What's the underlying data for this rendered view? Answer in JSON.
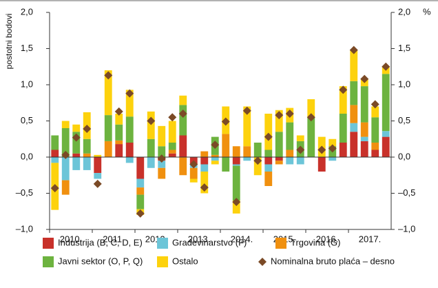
{
  "chart_data": {
    "type": "bar",
    "stacked": true,
    "ylabel": "postotni bodovi",
    "y2label": "%",
    "categories": [
      "2010.",
      null,
      null,
      null,
      "2011.",
      null,
      null,
      null,
      "2012.",
      null,
      null,
      null,
      "2013.",
      null,
      null,
      null,
      "2014.",
      null,
      null,
      null,
      "2015.",
      null,
      null,
      null,
      "2016.",
      null,
      null,
      null,
      "2017.",
      null,
      null,
      null
    ],
    "ylim": [
      -1,
      2
    ],
    "yticks": [
      {
        "value": -1,
        "label": "–1,0"
      },
      {
        "value": -0.5,
        "label": "–0,5"
      },
      {
        "value": 0,
        "label": "0,0"
      },
      {
        "value": 0.5,
        "label": "0,5"
      },
      {
        "value": 1,
        "label": "1,0"
      },
      {
        "value": 1.5,
        "label": "1,5"
      },
      {
        "value": 2,
        "label": "2,0"
      }
    ],
    "y2lim": [
      -1,
      2
    ],
    "y2ticks": [
      {
        "value": -1,
        "label": "–1,0"
      },
      {
        "value": -0.5,
        "label": "–0,5"
      },
      {
        "value": 0,
        "label": "0,0"
      },
      {
        "value": 0.5,
        "label": "0,5"
      },
      {
        "value": 1,
        "label": "1,0"
      },
      {
        "value": 1.5,
        "label": "1,5"
      },
      {
        "value": 2,
        "label": "2,0"
      }
    ],
    "grid": false,
    "series": [
      {
        "name": "Industrija (B, C, D, E)",
        "color": "#c8312a",
        "values": [
          0.1,
          0,
          0.05,
          0,
          -0.22,
          0,
          0.18,
          0.2,
          -0.3,
          0,
          -0.05,
          0.05,
          0.3,
          -0.1,
          -0.1,
          0,
          0,
          -0.1,
          0,
          0,
          -0.1,
          -0.05,
          0,
          0,
          0,
          -0.2,
          0,
          0.2,
          0.35,
          0.22,
          0.1,
          0.28
        ]
      },
      {
        "name": "Građevinarstvo (F)",
        "color": "#6cc5d8",
        "values": [
          -0.08,
          -0.32,
          -0.18,
          -0.18,
          -0.08,
          0,
          0,
          -0.08,
          -0.12,
          -0.15,
          -0.1,
          0,
          0,
          -0.05,
          -0.1,
          -0.05,
          0,
          -0.02,
          -0.05,
          0,
          -0.1,
          0,
          -0.1,
          -0.1,
          0,
          0,
          -0.05,
          0,
          0.12,
          0.06,
          0,
          0.08
        ]
      },
      {
        "name": "Trgovina (G)",
        "color": "#f0900f",
        "values": [
          0,
          -0.2,
          0,
          0.05,
          0,
          0.22,
          0.05,
          0,
          -0.1,
          0,
          -0.15,
          0.05,
          -0.25,
          -0.15,
          0.08,
          0.03,
          0.32,
          0.15,
          0.15,
          0,
          -0.2,
          -0.05,
          0.1,
          0,
          0,
          0,
          0,
          0,
          0.25,
          0.2,
          0.1,
          0
        ]
      },
      {
        "name": "Javni sektor (O, P, Q)",
        "color": "#6db33f",
        "values": [
          0.2,
          0.4,
          0.3,
          0.2,
          0,
          0.36,
          0.22,
          0.36,
          -0.2,
          0.25,
          0.15,
          0.1,
          0.42,
          0,
          0,
          0.25,
          -0.2,
          -0.48,
          0,
          0.2,
          0.1,
          0.35,
          0.38,
          0.22,
          0.55,
          0,
          0.15,
          0.4,
          0.33,
          0.5,
          0.35,
          0.79
        ]
      },
      {
        "name": "Ostalo",
        "color": "#fdd20d",
        "values": [
          -0.65,
          0.1,
          0.1,
          0.37,
          0.03,
          0.62,
          0.15,
          0.37,
          -0.08,
          0.38,
          0.28,
          0.3,
          0.13,
          -0.05,
          -0.3,
          -0.05,
          0.38,
          -0.18,
          0.55,
          -0.25,
          0.5,
          0.3,
          0.2,
          0.08,
          0.25,
          0.28,
          0.1,
          0.38,
          0.43,
          0.1,
          0.15,
          0.1
        ]
      },
      {
        "name": "Nominalna bruto plaća – desno",
        "color": "#7b4a26",
        "type": "scatter",
        "axis": "y2",
        "values": [
          -0.43,
          0.03,
          0.27,
          0.39,
          -0.37,
          1.13,
          0.63,
          0.88,
          -0.78,
          0.5,
          -0.02,
          0.55,
          0.6,
          -0.1,
          -0.42,
          0.17,
          0.49,
          -0.62,
          0.64,
          -0.05,
          0.28,
          0.58,
          0.6,
          0.1,
          0.55,
          0.1,
          0.12,
          0.93,
          1.48,
          1.08,
          0.73,
          1.25
        ]
      }
    ]
  }
}
